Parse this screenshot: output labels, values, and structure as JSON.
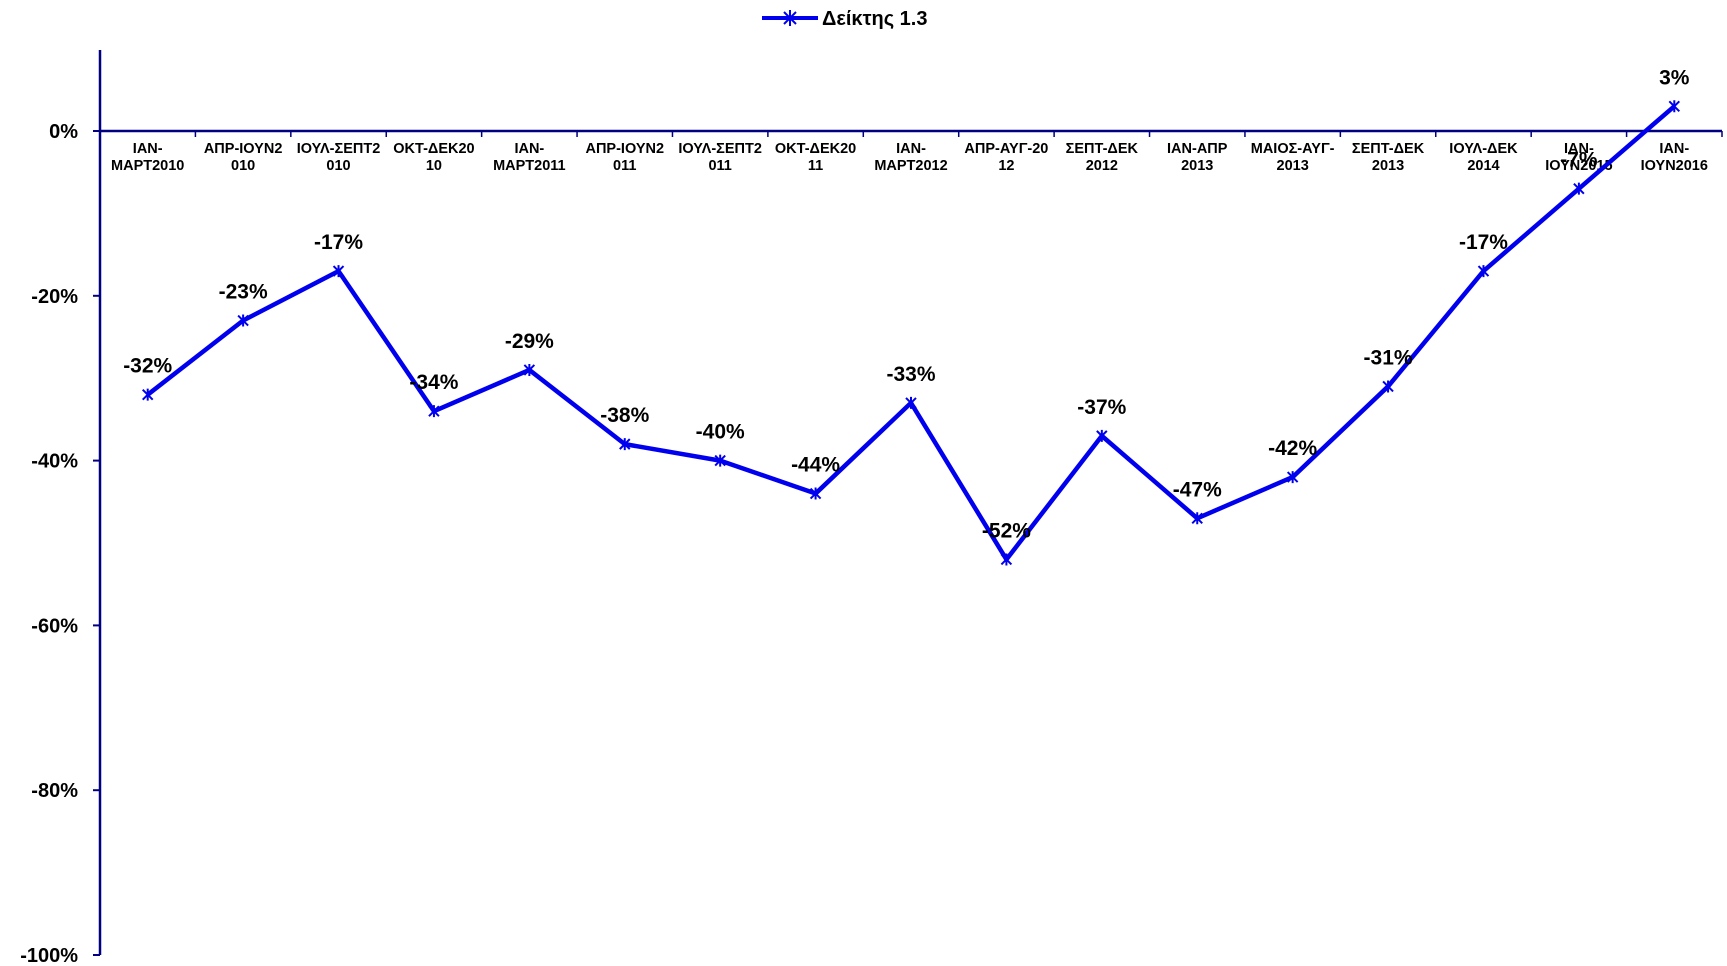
{
  "chart_data": {
    "type": "line",
    "title": "",
    "xlabel": "",
    "ylabel": "",
    "ylim": [
      -100,
      10
    ],
    "y_ticks": [
      0,
      -20,
      -40,
      -60,
      -80,
      -100
    ],
    "y_tick_labels": [
      "0%",
      "-20%",
      "-40%",
      "-60%",
      "-80%",
      "-100%"
    ],
    "legend_position": "top-center",
    "grid": false,
    "colors": {
      "series": "#0000EE",
      "axis": "#000080",
      "text": "#000000"
    },
    "categories": [
      [
        "ΙΑΝ-",
        "ΜΑΡΤ2010"
      ],
      [
        "ΑΠΡ-ΙΟΥΝ2",
        "010"
      ],
      [
        "ΙΟΥΛ-ΣΕΠΤ2",
        "010"
      ],
      [
        "ΟΚΤ-ΔΕΚ20",
        "10"
      ],
      [
        "ΙΑΝ-",
        "ΜΑΡΤ2011"
      ],
      [
        "ΑΠΡ-ΙΟΥΝ2",
        "011"
      ],
      [
        "ΙΟΥΛ-ΣΕΠΤ2",
        "011"
      ],
      [
        "ΟΚΤ-ΔΕΚ20",
        "11"
      ],
      [
        "ΙΑΝ-",
        "ΜΑΡΤ2012"
      ],
      [
        "ΑΠΡ-ΑΥΓ-20",
        "12"
      ],
      [
        "ΣΕΠΤ-ΔΕΚ",
        "2012"
      ],
      [
        "ΙΑΝ-ΑΠΡ",
        "2013"
      ],
      [
        "ΜΑΙΟΣ-ΑΥΓ-",
        "2013"
      ],
      [
        "ΣΕΠΤ-ΔΕΚ",
        "2013"
      ],
      [
        "ΙΟΥΛ-ΔΕΚ",
        "2014"
      ],
      [
        "ΙΑΝ-",
        "ΙΟΥΝ2015"
      ],
      [
        "ΙΑΝ-",
        "ΙΟΥΝ2016"
      ]
    ],
    "series": [
      {
        "name": "Δείκτης 1.3",
        "values": [
          -32,
          -23,
          -17,
          -34,
          -29,
          -38,
          -40,
          -44,
          -33,
          -52,
          -37,
          -47,
          -42,
          -31,
          -17,
          -7,
          3
        ],
        "data_labels": [
          "-32%",
          "-23%",
          "-17%",
          "-34%",
          "-29%",
          "-38%",
          "-40%",
          "-44%",
          "-33%",
          "-52%",
          "-37%",
          "-47%",
          "-42%",
          "-31%",
          "-17%",
          "-7%",
          "3%"
        ]
      }
    ]
  }
}
